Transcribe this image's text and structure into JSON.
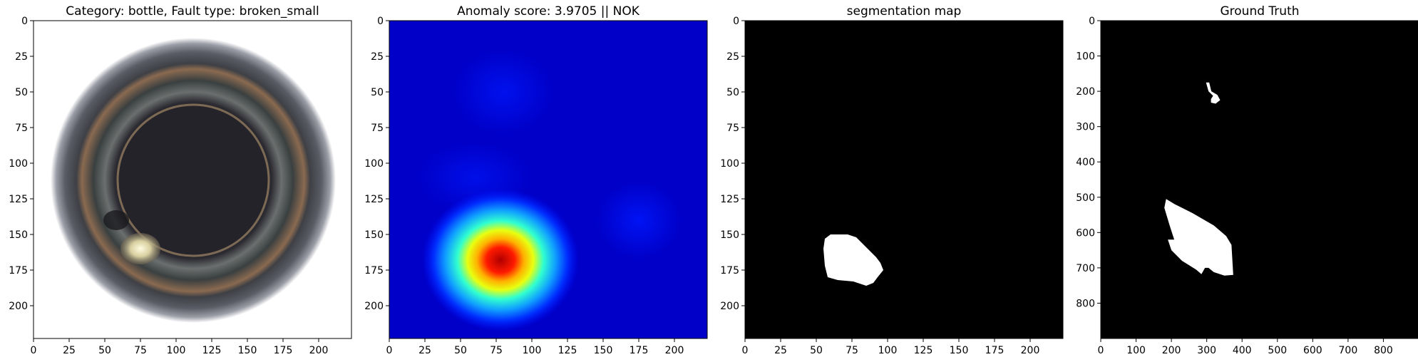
{
  "chart_data": [
    {
      "type": "image",
      "title": "Category: bottle, Fault type: broken_small",
      "xlim": [
        0,
        223
      ],
      "ylim": [
        223,
        0
      ],
      "xticks": [
        0,
        25,
        50,
        75,
        100,
        125,
        150,
        175,
        200
      ],
      "yticks": [
        0,
        25,
        50,
        75,
        100,
        125,
        150,
        175,
        200
      ],
      "content": "bottle-photo"
    },
    {
      "type": "heatmap",
      "title": "Anomaly score: 3.9705 || NOK",
      "xlim": [
        0,
        223
      ],
      "ylim": [
        223,
        0
      ],
      "xticks": [
        0,
        25,
        50,
        75,
        100,
        125,
        150,
        175,
        200
      ],
      "yticks": [
        0,
        25,
        50,
        75,
        100,
        125,
        150,
        175,
        200
      ],
      "colormap": "jet",
      "hotspot_center": [
        78,
        168
      ],
      "anomaly_score": 3.9705,
      "verdict": "NOK"
    },
    {
      "type": "image",
      "title": "segmentation map",
      "xlim": [
        0,
        223
      ],
      "ylim": [
        223,
        0
      ],
      "xticks": [
        0,
        25,
        50,
        75,
        100,
        125,
        150,
        175,
        200
      ],
      "yticks": [
        0,
        25,
        50,
        75,
        100,
        125,
        150,
        175,
        200
      ],
      "content": "binary-mask",
      "mask_polygon": [
        [
          56,
          153
        ],
        [
          60,
          150
        ],
        [
          72,
          150
        ],
        [
          78,
          152
        ],
        [
          83,
          157
        ],
        [
          88,
          162
        ],
        [
          92,
          166
        ],
        [
          95,
          170
        ],
        [
          97,
          175
        ],
        [
          93,
          180
        ],
        [
          90,
          184
        ],
        [
          85,
          186
        ],
        [
          76,
          183
        ],
        [
          65,
          182
        ],
        [
          58,
          180
        ],
        [
          56,
          172
        ],
        [
          55,
          160
        ]
      ]
    },
    {
      "type": "image",
      "title": "Ground Truth",
      "xlim": [
        0,
        900
      ],
      "ylim": [
        900,
        0
      ],
      "xticks": [
        0,
        100,
        200,
        300,
        400,
        500,
        600,
        700,
        800
      ],
      "yticks": [
        0,
        100,
        200,
        300,
        400,
        500,
        600,
        700,
        800
      ],
      "content": "binary-mask",
      "mask_polygons": [
        [
          [
            298,
            175
          ],
          [
            307,
            175
          ],
          [
            313,
            200
          ],
          [
            330,
            210
          ],
          [
            338,
            225
          ],
          [
            325,
            235
          ],
          [
            312,
            232
          ],
          [
            312,
            222
          ],
          [
            318,
            213
          ],
          [
            305,
            200
          ]
        ],
        [
          [
            185,
            505
          ],
          [
            210,
            520
          ],
          [
            260,
            545
          ],
          [
            320,
            580
          ],
          [
            355,
            610
          ],
          [
            370,
            635
          ],
          [
            375,
            720
          ],
          [
            350,
            722
          ],
          [
            320,
            712
          ],
          [
            305,
            700
          ],
          [
            295,
            700
          ],
          [
            285,
            718
          ],
          [
            270,
            705
          ],
          [
            230,
            680
          ],
          [
            200,
            650
          ],
          [
            190,
            620
          ],
          [
            208,
            620
          ],
          [
            195,
            580
          ],
          [
            180,
            530
          ]
        ]
      ]
    }
  ]
}
